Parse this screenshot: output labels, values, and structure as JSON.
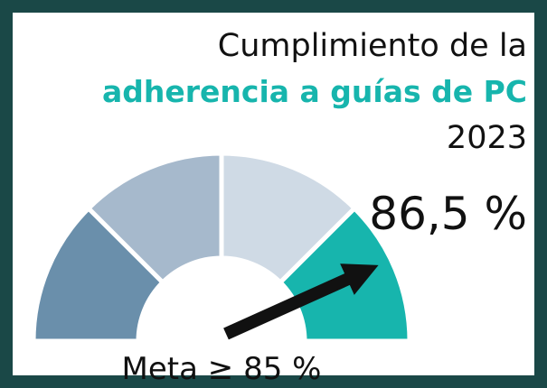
{
  "chart_data": {
    "type": "gauge",
    "title": "Cumplimiento de la",
    "subtitle": "adherencia a guías de PC",
    "year": "2023",
    "value": 86.5,
    "value_label": "86,5 %",
    "ylim": [
      0,
      100
    ],
    "segment_colors": [
      "#6a8fab",
      "#a6b9cc",
      "#cfdae5",
      "#17b5ad"
    ],
    "needle_color": "#111111",
    "annotation": "Meta ≥ 85 %"
  }
}
